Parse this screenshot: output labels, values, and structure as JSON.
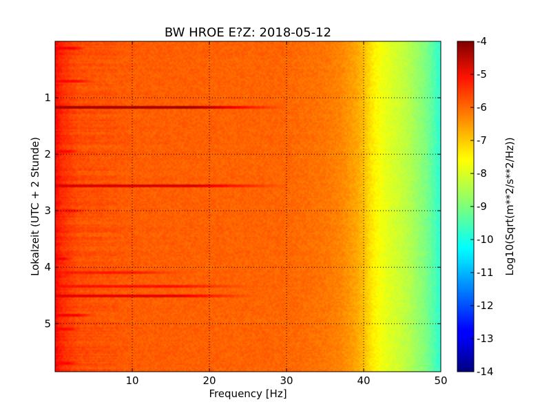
{
  "chart_data": {
    "type": "heatmap",
    "title": "BW HROE E?Z: 2018-05-12",
    "xlabel": "Frequency [Hz]",
    "ylabel": "Lokalzeit (UTC + 2 Stunde)",
    "xlim": [
      0,
      50
    ],
    "ylim": [
      5.85,
      0
    ],
    "xticks": [
      "10",
      "20",
      "30",
      "40",
      "50"
    ],
    "yticks": [
      "1",
      "2",
      "3",
      "4",
      "5"
    ],
    "grid": true,
    "colorbar": {
      "label": "Log10(Sqrt(m**2/s**2/Hz))",
      "range": [
        -14,
        -4
      ],
      "ticks": [
        "-4",
        "-5",
        "-6",
        "-7",
        "-8",
        "-9",
        "-10",
        "-11",
        "-12",
        "-13",
        "-14"
      ],
      "colormap": "jet"
    },
    "frequency_profile": {
      "freq_hz": [
        0,
        1,
        3,
        10,
        20,
        30,
        35,
        37,
        38,
        39,
        40,
        41,
        42,
        43,
        44,
        45,
        46,
        47,
        48,
        49,
        50
      ],
      "log_amplitude": [
        -5.3,
        -5.7,
        -6.0,
        -6.15,
        -6.2,
        -6.25,
        -6.4,
        -6.55,
        -6.7,
        -6.85,
        -7.1,
        -7.5,
        -7.8,
        -8.0,
        -8.15,
        -8.3,
        -8.5,
        -8.75,
        -9.0,
        -9.4,
        -9.85
      ]
    },
    "bands": [
      {
        "time_h": 1.17,
        "fmax_hz": 30,
        "log_amplitude": -4.4
      },
      {
        "time_h": 2.55,
        "fmax_hz": 30,
        "log_amplitude": -4.9
      },
      {
        "time_h": 4.5,
        "fmax_hz": 26,
        "log_amplitude": -5.0
      },
      {
        "time_h": 4.35,
        "fmax_hz": 26,
        "log_amplitude": -5.4
      },
      {
        "time_h": 0.12,
        "fmax_hz": 4,
        "log_amplitude": -5.2
      },
      {
        "time_h": 0.7,
        "fmax_hz": 5,
        "log_amplitude": -5.3
      },
      {
        "time_h": 1.95,
        "fmax_hz": 3,
        "log_amplitude": -5.3
      },
      {
        "time_h": 3.0,
        "fmax_hz": 4,
        "log_amplitude": -5.4
      },
      {
        "time_h": 3.85,
        "fmax_hz": 2,
        "log_amplitude": -5.2
      },
      {
        "time_h": 4.1,
        "fmax_hz": 17,
        "log_amplitude": -5.5
      },
      {
        "time_h": 4.85,
        "fmax_hz": 5,
        "log_amplitude": -5.2
      },
      {
        "time_h": 5.1,
        "fmax_hz": 3,
        "log_amplitude": -5.3
      },
      {
        "time_h": 5.7,
        "fmax_hz": 3,
        "log_amplitude": -5.3
      }
    ]
  }
}
